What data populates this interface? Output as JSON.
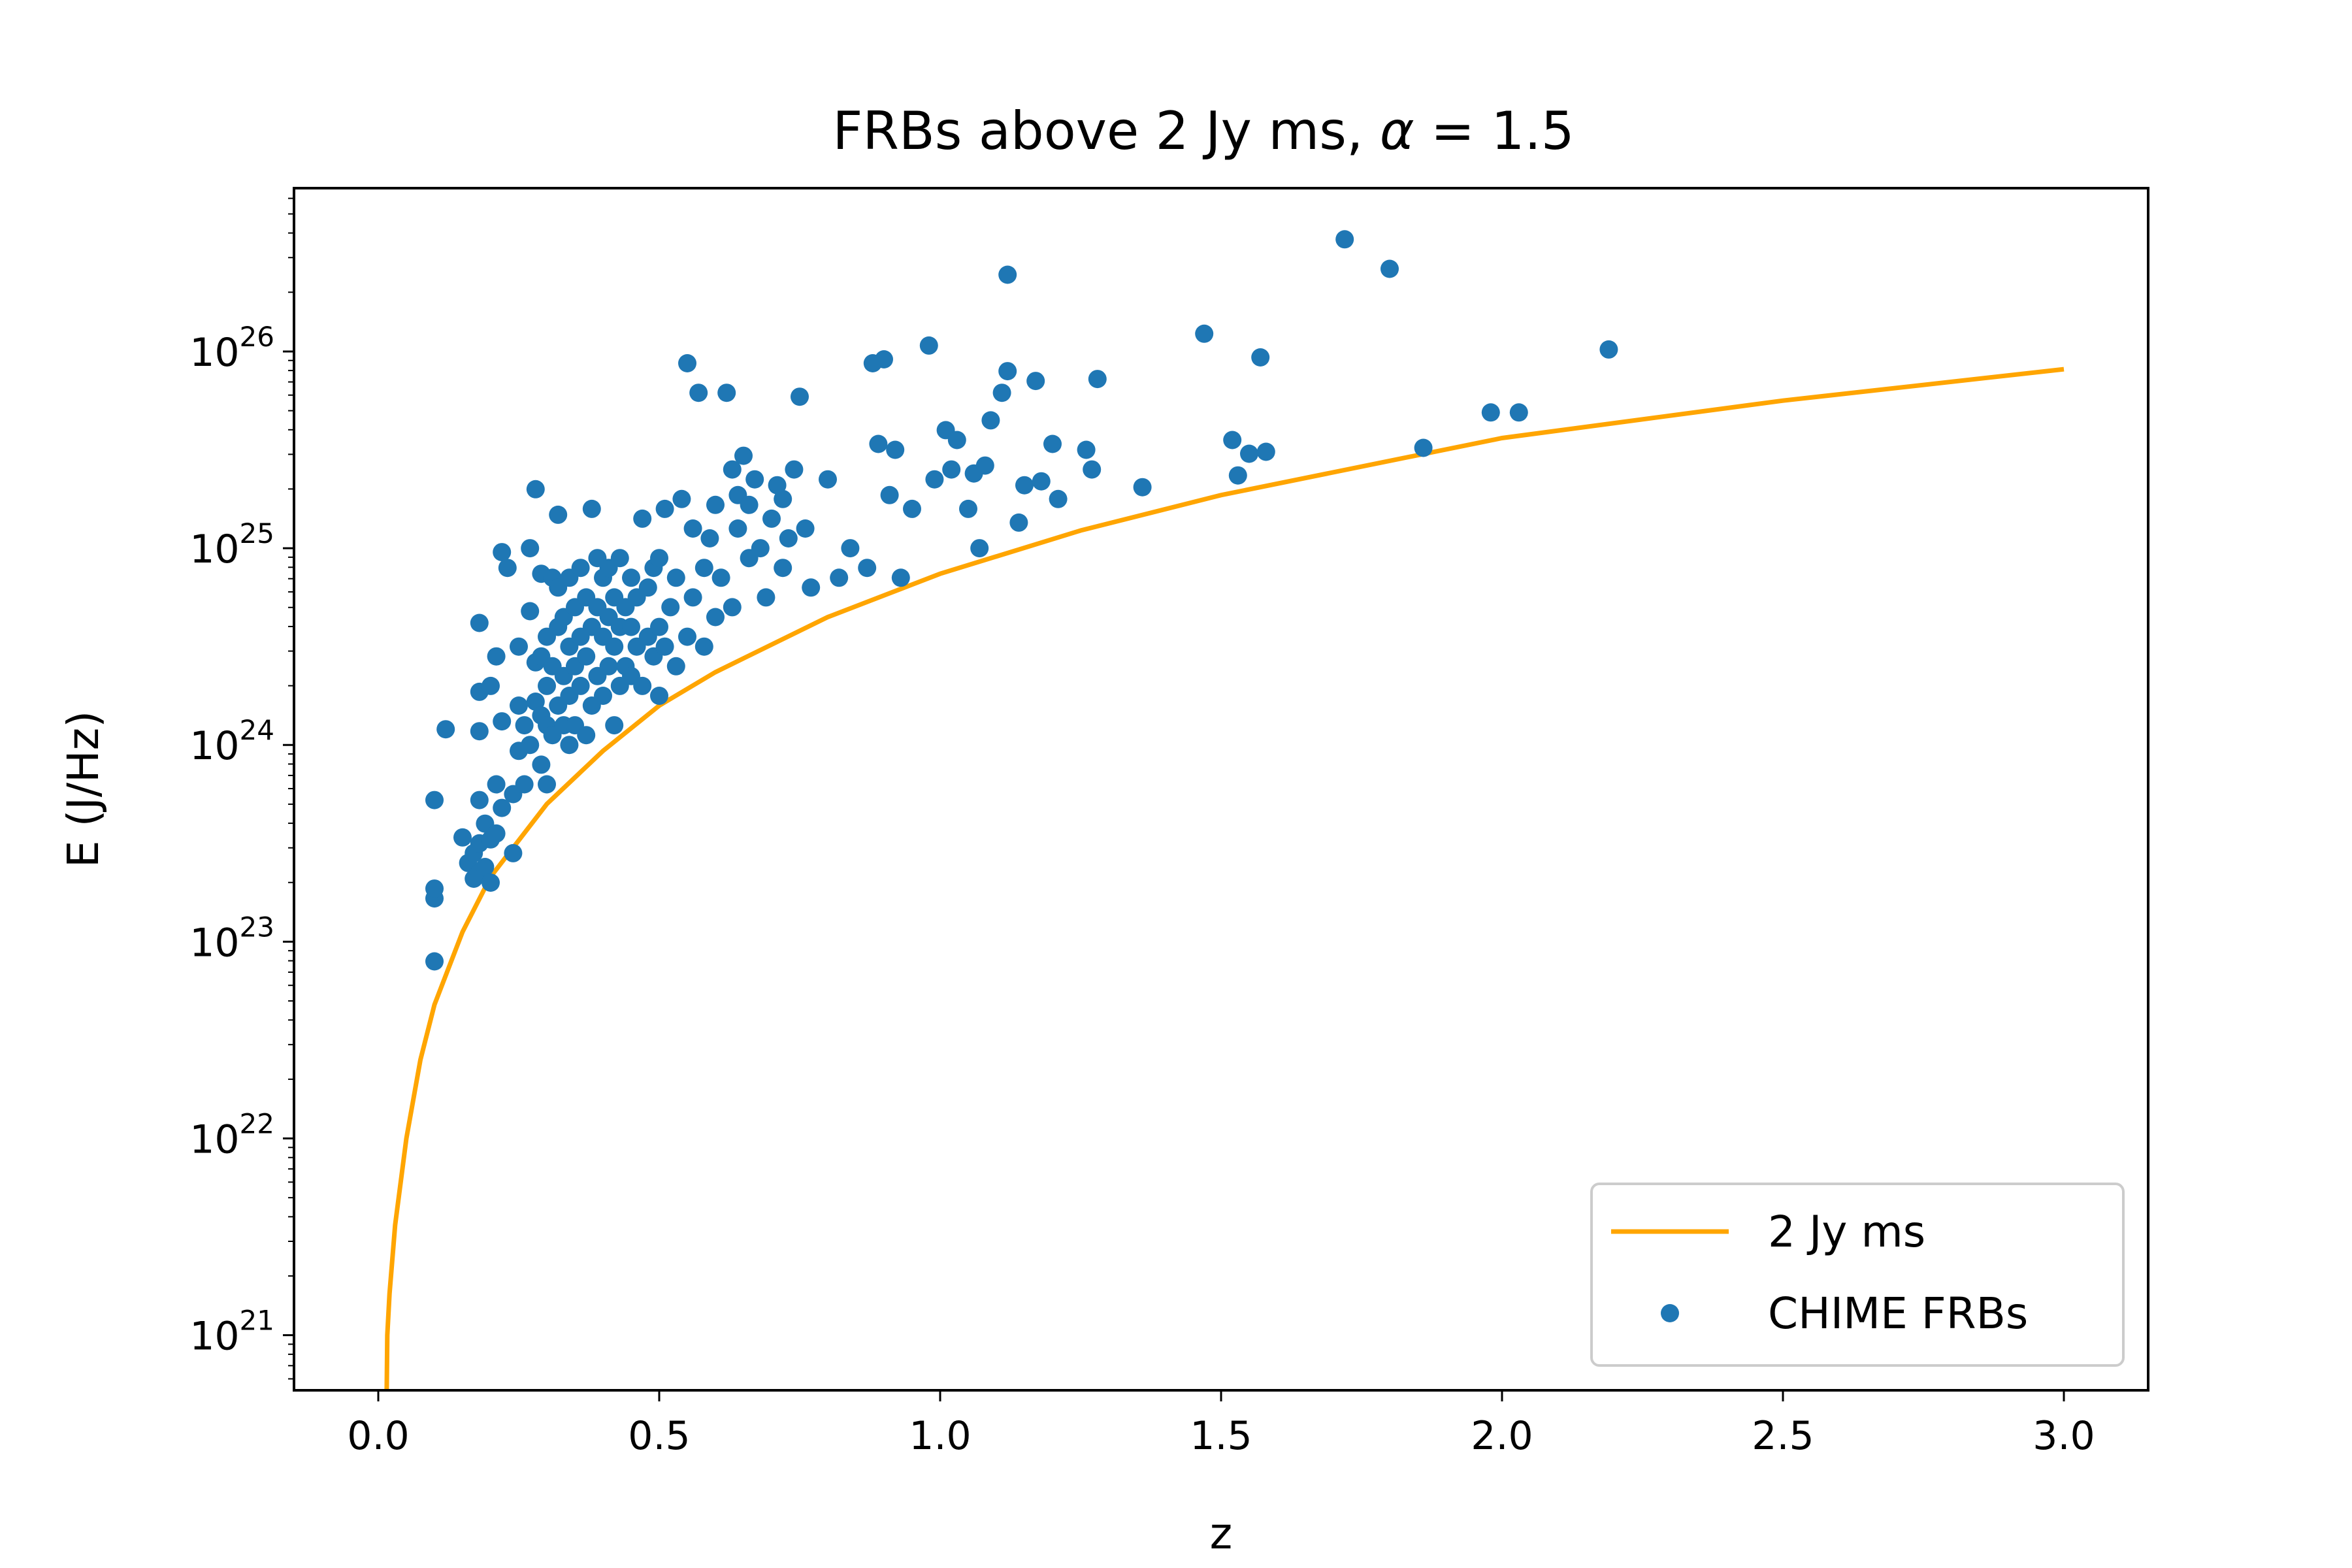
{
  "chart_data": {
    "type": "scatter",
    "title_prefix": "FRBs above 2 Jy ms, ",
    "title_symbol": "α",
    "title_suffix": " = 1.5",
    "xlabel": "z",
    "ylabel": "E (J/Hz)",
    "xlim": [
      -0.15,
      3.15
    ],
    "ylim_log10": [
      20.72,
      26.83
    ],
    "y_scale": "log",
    "x_ticks": [
      {
        "value": 0.0,
        "label": "0.0"
      },
      {
        "value": 0.5,
        "label": "0.5"
      },
      {
        "value": 1.0,
        "label": "1.0"
      },
      {
        "value": 1.5,
        "label": "1.5"
      },
      {
        "value": 2.0,
        "label": "2.0"
      },
      {
        "value": 2.5,
        "label": "2.5"
      },
      {
        "value": 3.0,
        "label": "3.0"
      }
    ],
    "y_ticks": [
      {
        "exp": 21,
        "base": "10",
        "sup": "21"
      },
      {
        "exp": 22,
        "base": "10",
        "sup": "22"
      },
      {
        "exp": 23,
        "base": "10",
        "sup": "23"
      },
      {
        "exp": 24,
        "base": "10",
        "sup": "24"
      },
      {
        "exp": 25,
        "base": "10",
        "sup": "25"
      },
      {
        "exp": 26,
        "base": "10",
        "sup": "26"
      }
    ],
    "legend_position": "lower-right",
    "colors": {
      "line": "#ffa500",
      "points": "#1f77b4"
    },
    "series": [
      {
        "name": "2 Jy ms",
        "kind": "line",
        "points": [
          [
            0.015,
            20.72
          ],
          [
            0.016,
            21.0
          ],
          [
            0.02,
            21.21
          ],
          [
            0.03,
            21.56
          ],
          [
            0.05,
            22.0
          ],
          [
            0.075,
            22.4
          ],
          [
            0.1,
            22.68
          ],
          [
            0.15,
            23.05
          ],
          [
            0.2,
            23.33
          ],
          [
            0.3,
            23.7
          ],
          [
            0.4,
            23.97
          ],
          [
            0.5,
            24.2
          ],
          [
            0.6,
            24.37
          ],
          [
            0.8,
            24.65
          ],
          [
            1.0,
            24.87
          ],
          [
            1.25,
            25.09
          ],
          [
            1.5,
            25.27
          ],
          [
            2.0,
            25.56
          ],
          [
            2.5,
            25.75
          ],
          [
            3.0,
            25.91
          ]
        ]
      },
      {
        "name": "CHIME FRBs",
        "kind": "scatter",
        "points": [
          [
            0.1,
            22.9
          ],
          [
            0.1,
            23.22
          ],
          [
            0.1,
            23.27
          ],
          [
            0.1,
            23.72
          ],
          [
            0.12,
            24.08
          ],
          [
            0.15,
            23.53
          ],
          [
            0.16,
            23.4
          ],
          [
            0.17,
            23.32
          ],
          [
            0.17,
            23.45
          ],
          [
            0.18,
            23.35
          ],
          [
            0.18,
            23.5
          ],
          [
            0.18,
            23.72
          ],
          [
            0.18,
            24.07
          ],
          [
            0.18,
            24.27
          ],
          [
            0.18,
            24.62
          ],
          [
            0.19,
            23.38
          ],
          [
            0.19,
            23.6
          ],
          [
            0.2,
            23.3
          ],
          [
            0.2,
            23.52
          ],
          [
            0.2,
            24.3
          ],
          [
            0.21,
            23.55
          ],
          [
            0.21,
            23.8
          ],
          [
            0.21,
            24.45
          ],
          [
            0.22,
            23.68
          ],
          [
            0.22,
            24.12
          ],
          [
            0.22,
            24.98
          ],
          [
            0.23,
            24.9
          ],
          [
            0.24,
            23.45
          ],
          [
            0.24,
            23.75
          ],
          [
            0.25,
            23.97
          ],
          [
            0.25,
            24.2
          ],
          [
            0.25,
            24.5
          ],
          [
            0.26,
            23.8
          ],
          [
            0.26,
            24.1
          ],
          [
            0.27,
            24.0
          ],
          [
            0.27,
            24.68
          ],
          [
            0.27,
            25.0
          ],
          [
            0.28,
            24.42
          ],
          [
            0.28,
            24.22
          ],
          [
            0.28,
            25.3
          ],
          [
            0.29,
            23.9
          ],
          [
            0.29,
            24.15
          ],
          [
            0.29,
            24.45
          ],
          [
            0.29,
            24.87
          ],
          [
            0.3,
            23.8
          ],
          [
            0.3,
            24.1
          ],
          [
            0.3,
            24.3
          ],
          [
            0.3,
            24.55
          ],
          [
            0.31,
            24.05
          ],
          [
            0.31,
            24.4
          ],
          [
            0.31,
            24.85
          ],
          [
            0.32,
            24.2
          ],
          [
            0.32,
            24.6
          ],
          [
            0.32,
            24.8
          ],
          [
            0.32,
            25.17
          ],
          [
            0.33,
            24.1
          ],
          [
            0.33,
            24.35
          ],
          [
            0.33,
            24.65
          ],
          [
            0.34,
            24.0
          ],
          [
            0.34,
            24.25
          ],
          [
            0.34,
            24.5
          ],
          [
            0.34,
            24.85
          ],
          [
            0.35,
            24.1
          ],
          [
            0.35,
            24.4
          ],
          [
            0.35,
            24.7
          ],
          [
            0.36,
            24.3
          ],
          [
            0.36,
            24.55
          ],
          [
            0.36,
            24.9
          ],
          [
            0.37,
            24.05
          ],
          [
            0.37,
            24.45
          ],
          [
            0.37,
            24.75
          ],
          [
            0.38,
            24.2
          ],
          [
            0.38,
            24.6
          ],
          [
            0.38,
            25.2
          ],
          [
            0.39,
            24.35
          ],
          [
            0.39,
            24.7
          ],
          [
            0.39,
            24.95
          ],
          [
            0.4,
            24.25
          ],
          [
            0.4,
            24.55
          ],
          [
            0.4,
            24.85
          ],
          [
            0.41,
            24.4
          ],
          [
            0.41,
            24.65
          ],
          [
            0.41,
            24.9
          ],
          [
            0.42,
            24.1
          ],
          [
            0.42,
            24.5
          ],
          [
            0.42,
            24.75
          ],
          [
            0.43,
            24.3
          ],
          [
            0.43,
            24.6
          ],
          [
            0.43,
            24.95
          ],
          [
            0.44,
            24.4
          ],
          [
            0.44,
            24.7
          ],
          [
            0.45,
            24.35
          ],
          [
            0.45,
            24.6
          ],
          [
            0.45,
            24.85
          ],
          [
            0.46,
            24.5
          ],
          [
            0.46,
            24.75
          ],
          [
            0.47,
            24.3
          ],
          [
            0.47,
            25.15
          ],
          [
            0.48,
            24.55
          ],
          [
            0.48,
            24.8
          ],
          [
            0.49,
            24.45
          ],
          [
            0.49,
            24.9
          ],
          [
            0.5,
            24.25
          ],
          [
            0.5,
            24.6
          ],
          [
            0.5,
            24.95
          ],
          [
            0.51,
            24.5
          ],
          [
            0.51,
            25.2
          ],
          [
            0.52,
            24.7
          ],
          [
            0.53,
            24.4
          ],
          [
            0.53,
            24.85
          ],
          [
            0.54,
            25.25
          ],
          [
            0.55,
            24.55
          ],
          [
            0.55,
            25.94
          ],
          [
            0.56,
            24.75
          ],
          [
            0.56,
            25.1
          ],
          [
            0.57,
            25.79
          ],
          [
            0.58,
            24.5
          ],
          [
            0.58,
            24.9
          ],
          [
            0.59,
            25.05
          ],
          [
            0.6,
            24.65
          ],
          [
            0.6,
            25.22
          ],
          [
            0.61,
            24.85
          ],
          [
            0.62,
            25.79
          ],
          [
            0.63,
            24.7
          ],
          [
            0.63,
            25.4
          ],
          [
            0.64,
            25.1
          ],
          [
            0.64,
            25.27
          ],
          [
            0.65,
            25.47
          ],
          [
            0.66,
            24.95
          ],
          [
            0.66,
            25.22
          ],
          [
            0.67,
            25.35
          ],
          [
            0.68,
            25.0
          ],
          [
            0.69,
            24.75
          ],
          [
            0.7,
            25.15
          ],
          [
            0.71,
            25.32
          ],
          [
            0.72,
            24.9
          ],
          [
            0.72,
            25.25
          ],
          [
            0.73,
            25.05
          ],
          [
            0.74,
            25.4
          ],
          [
            0.75,
            25.77
          ],
          [
            0.76,
            25.1
          ],
          [
            0.77,
            24.8
          ],
          [
            0.8,
            25.35
          ],
          [
            0.82,
            24.85
          ],
          [
            0.84,
            25.0
          ],
          [
            0.87,
            24.9
          ],
          [
            0.88,
            25.94
          ],
          [
            0.89,
            25.53
          ],
          [
            0.9,
            25.96
          ],
          [
            0.91,
            25.27
          ],
          [
            0.92,
            25.5
          ],
          [
            0.93,
            24.85
          ],
          [
            0.95,
            25.2
          ],
          [
            0.98,
            26.03
          ],
          [
            0.99,
            25.35
          ],
          [
            1.01,
            25.6
          ],
          [
            1.02,
            25.4
          ],
          [
            1.03,
            25.55
          ],
          [
            1.05,
            25.2
          ],
          [
            1.06,
            25.38
          ],
          [
            1.07,
            25.0
          ],
          [
            1.08,
            25.42
          ],
          [
            1.09,
            25.65
          ],
          [
            1.11,
            25.79
          ],
          [
            1.12,
            25.9
          ],
          [
            1.12,
            26.39
          ],
          [
            1.14,
            25.13
          ],
          [
            1.15,
            25.32
          ],
          [
            1.17,
            25.85
          ],
          [
            1.18,
            25.34
          ],
          [
            1.2,
            25.53
          ],
          [
            1.21,
            25.25
          ],
          [
            1.26,
            25.5
          ],
          [
            1.27,
            25.4
          ],
          [
            1.28,
            25.86
          ],
          [
            1.36,
            25.31
          ],
          [
            1.47,
            26.09
          ],
          [
            1.52,
            25.55
          ],
          [
            1.53,
            25.37
          ],
          [
            1.55,
            25.48
          ],
          [
            1.57,
            25.97
          ],
          [
            1.58,
            25.49
          ],
          [
            1.72,
            26.57
          ],
          [
            1.8,
            26.42
          ],
          [
            1.86,
            25.51
          ],
          [
            1.98,
            25.69
          ],
          [
            2.03,
            25.69
          ],
          [
            2.19,
            26.01
          ]
        ]
      }
    ]
  }
}
